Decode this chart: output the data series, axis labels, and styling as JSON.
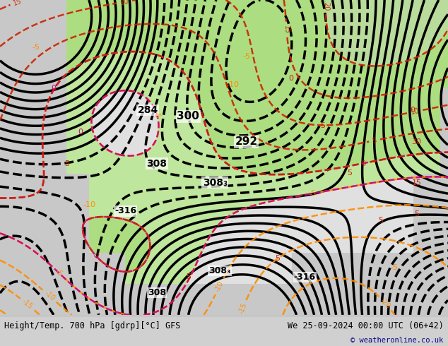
{
  "title_left": "Height/Temp. 700 hPa [gdrp][°C] GFS",
  "title_right": "We 25-09-2024 00:00 UTC (06+42)",
  "copyright": "© weatheronline.co.uk",
  "bg_color": "#d0d0d0",
  "land_color": "#e8e8e8",
  "ocean_color": "#d0d0d0",
  "warm_land_color": "#c8f0a0",
  "fig_width": 6.34,
  "fig_height": 4.9,
  "dpi": 100,
  "bottom_bar_color": "#f0f0f0",
  "text_color_left": "#000000",
  "text_color_right": "#000000",
  "copyright_color": "#00008b"
}
